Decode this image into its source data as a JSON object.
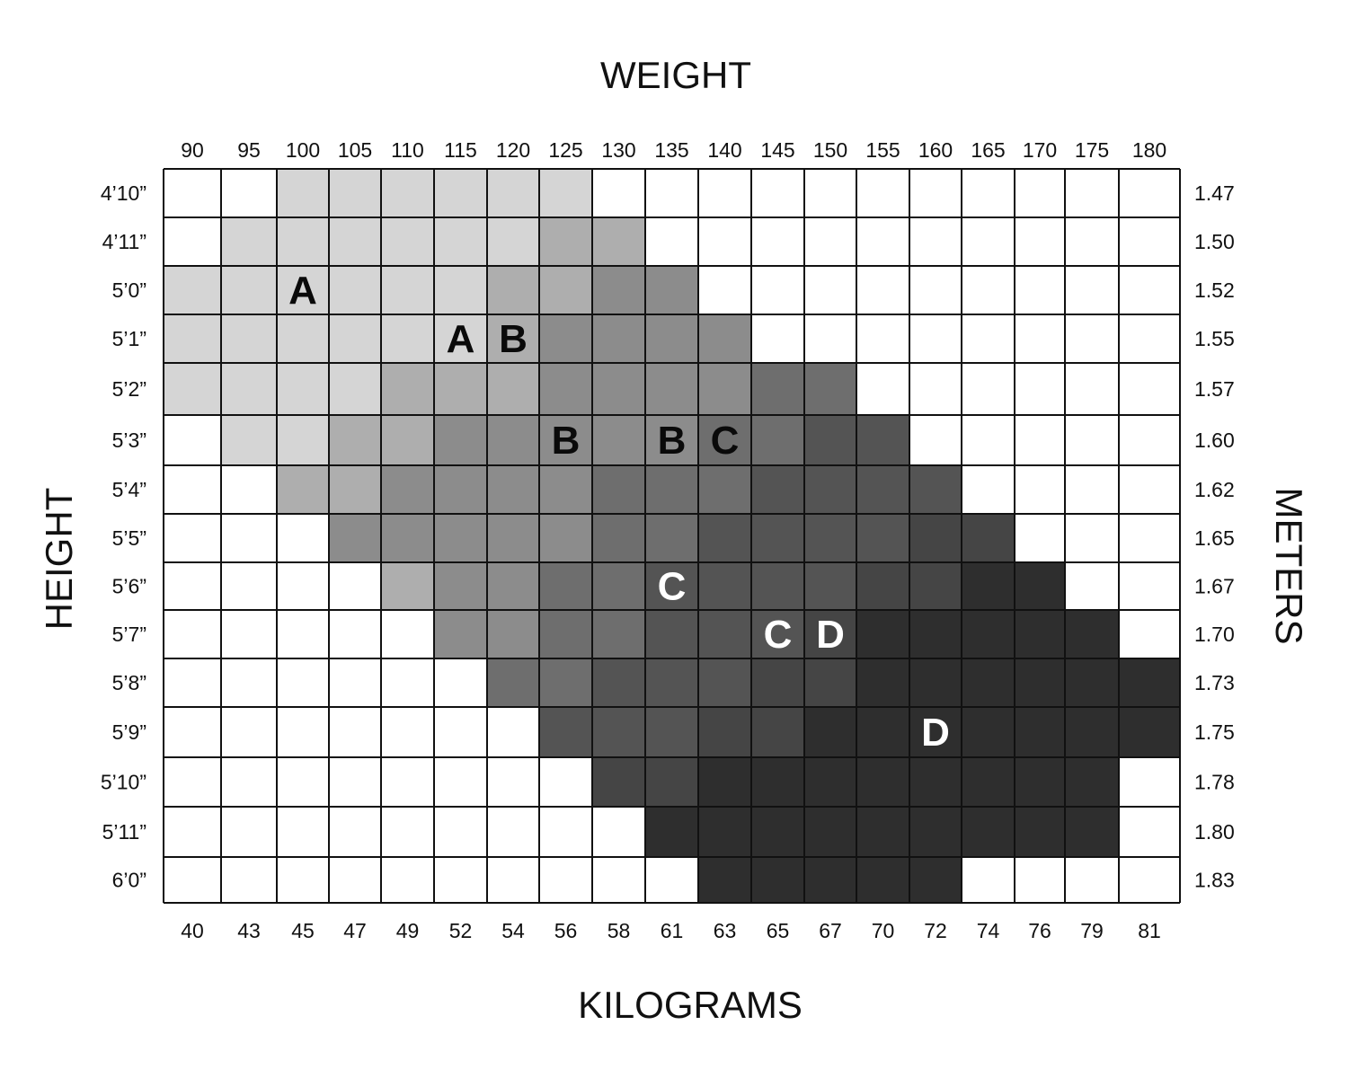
{
  "chart_data": {
    "type": "heatmap",
    "title": "WEIGHT",
    "xlabel_top": "WEIGHT",
    "xlabel_bottom": "KILOGRAMS",
    "ylabel_left": "HEIGHT",
    "ylabel_right": "METERS",
    "x_pounds": [
      "90",
      "95",
      "100",
      "105",
      "110",
      "115",
      "120",
      "125",
      "130",
      "135",
      "140",
      "145",
      "150",
      "155",
      "160",
      "165",
      "170",
      "175",
      "180"
    ],
    "x_kilograms": [
      "40",
      "43",
      "45",
      "47",
      "49",
      "52",
      "54",
      "56",
      "58",
      "61",
      "63",
      "65",
      "67",
      "70",
      "72",
      "74",
      "76",
      "79",
      "81"
    ],
    "y_feet": [
      "4’10”",
      "4’11”",
      "5’0”",
      "5’1”",
      "5’2”",
      "5’3”",
      "5’4”",
      "5’5”",
      "5’6”",
      "5’7”",
      "5’8”",
      "5’9”",
      "5’10”",
      "5’11”",
      "6’0”"
    ],
    "y_meters": [
      "1.47",
      "1.50",
      "1.52",
      "1.55",
      "1.57",
      "1.60",
      "1.62",
      "1.65",
      "1.67",
      "1.70",
      "1.73",
      "1.75",
      "1.78",
      "1.80",
      "1.83"
    ],
    "size_labels": [
      {
        "text": "A",
        "row": 2,
        "col": 2,
        "color": "dark"
      },
      {
        "text": "A",
        "row": 3,
        "col": 5,
        "color": "dark"
      },
      {
        "text": "B",
        "row": 3,
        "col": 6,
        "color": "dark"
      },
      {
        "text": "B",
        "row": 5,
        "col": 7,
        "color": "dark"
      },
      {
        "text": "B",
        "row": 5,
        "col": 9,
        "color": "dark"
      },
      {
        "text": "C",
        "row": 5,
        "col": 10,
        "color": "dark"
      },
      {
        "text": "C",
        "row": 8,
        "col": 9,
        "color": "light"
      },
      {
        "text": "C",
        "row": 9,
        "col": 11,
        "color": "light"
      },
      {
        "text": "D",
        "row": 9,
        "col": 12,
        "color": "light"
      },
      {
        "text": "D",
        "row": 11,
        "col": 14,
        "color": "light"
      }
    ],
    "shade_colors": {
      "0": "#ffffff",
      "1": "#d5d5d5",
      "2": "#aeaeae",
      "3": "#8c8c8c",
      "4": "#6e6e6e",
      "5": "#545454",
      "6": "#454545",
      "7": "#2e2e2e"
    },
    "grid_shades": [
      "0011111100000000000",
      "0111111220000000000",
      "1111112233000000000",
      "1111112333300000000",
      "1111222333344000000",
      "0112233333445500000",
      "0022333344455550000",
      "0003333344555566000",
      "0000233445555667700",
      "0000033445556777770",
      "0000004455566777777",
      "0000000555667777777",
      "0000000066777777770",
      "0000000007777777770",
      "0000000000777770000"
    ],
    "grid": "on"
  }
}
